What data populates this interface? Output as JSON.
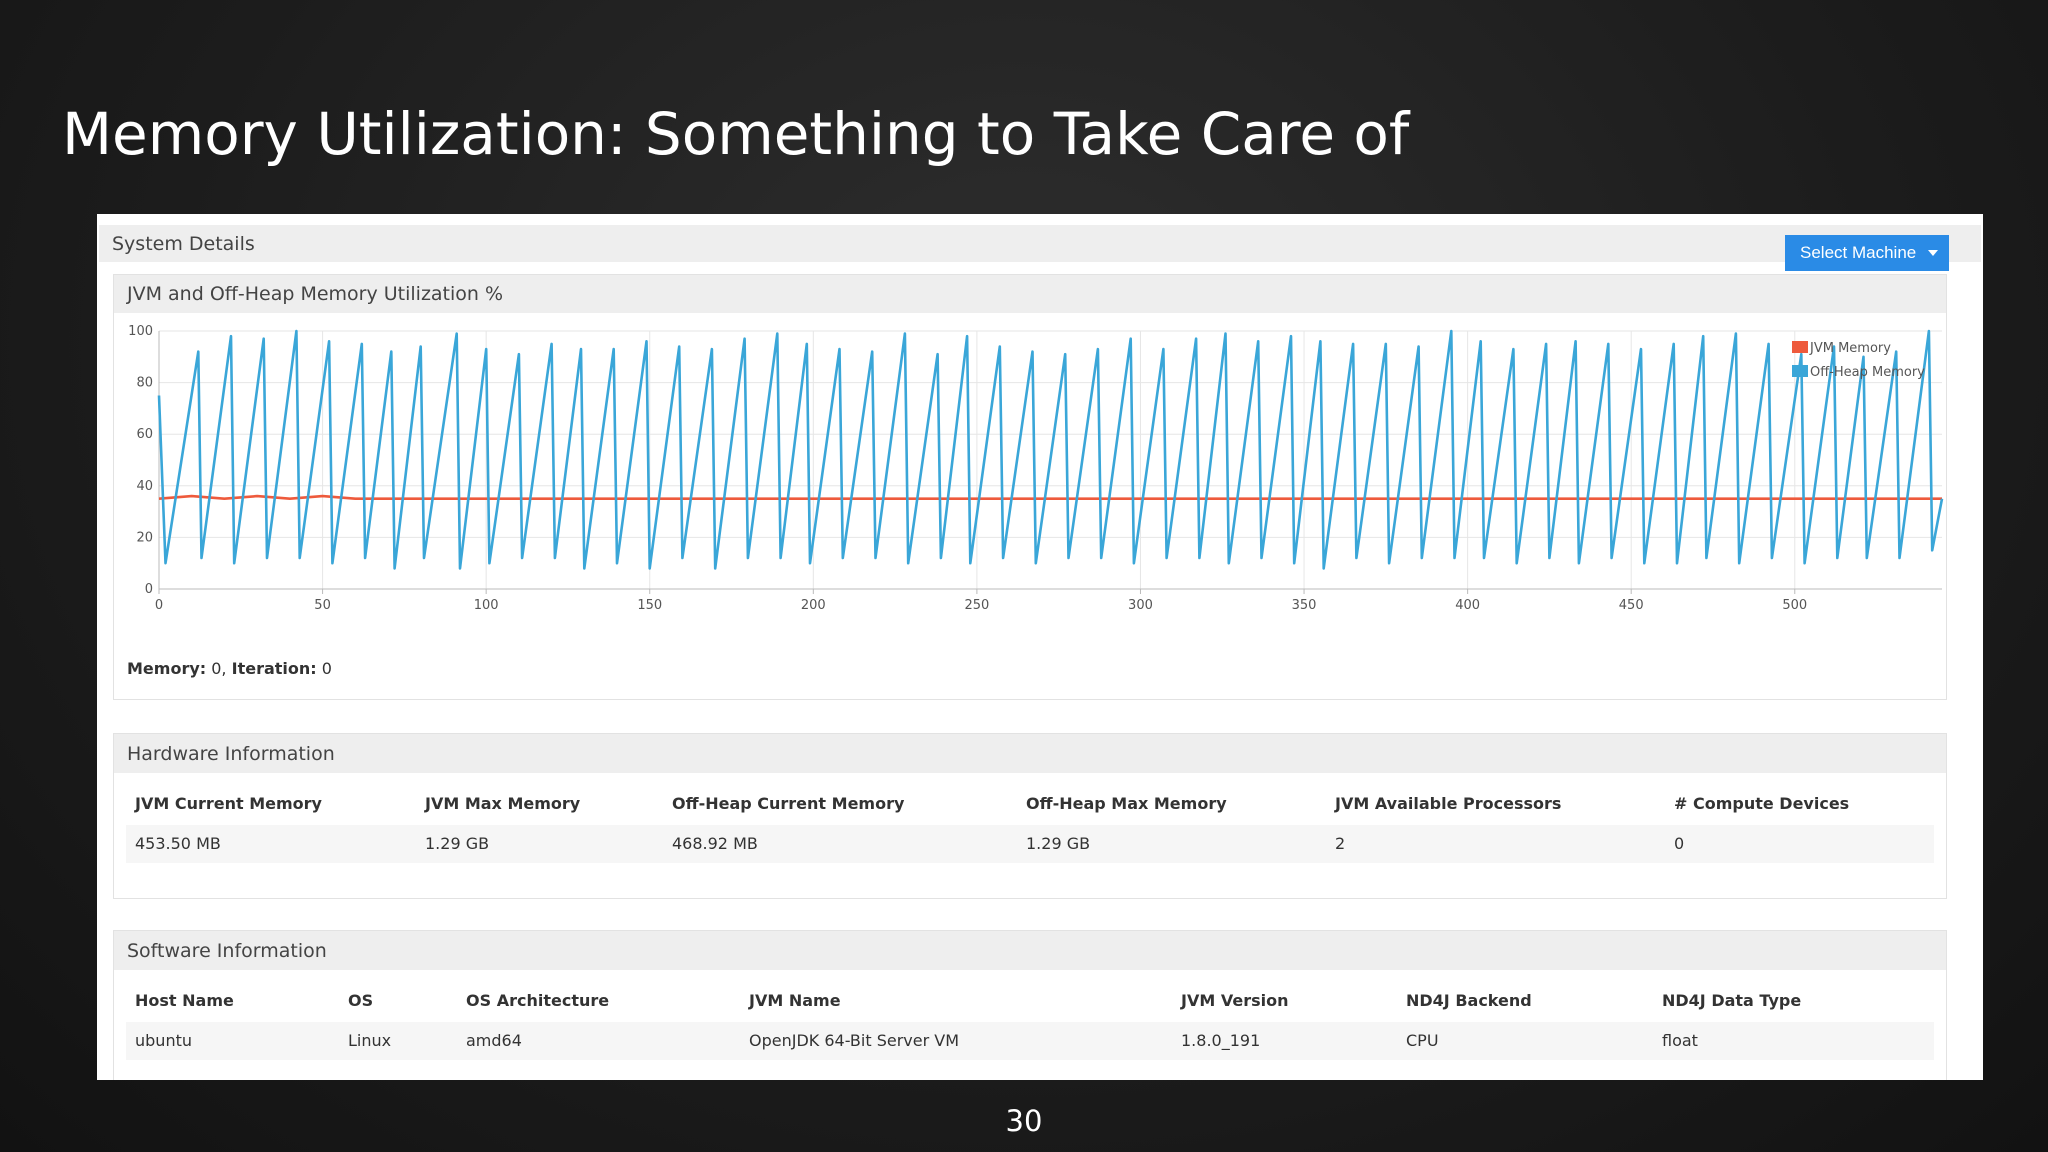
{
  "slide_title": "Memory Utilization: Something to Take Care of",
  "page_number": 30,
  "panel": {
    "heading": "System Details",
    "button": "Select Machine"
  },
  "chart_data": {
    "type": "line",
    "title": "JVM and Off-Heap Memory Utilization %",
    "series": [
      {
        "name": "JVM Memory",
        "color": "#ee5a3c",
        "x": [
          0,
          10,
          20,
          30,
          40,
          50,
          60,
          80,
          100,
          545
        ],
        "values": [
          35,
          36,
          35,
          36,
          35,
          36,
          35,
          35,
          35,
          35
        ]
      },
      {
        "name": "Off-Heap Memory",
        "color": "#3aa6d8",
        "x": [
          0,
          2,
          12,
          13,
          22,
          23,
          32,
          33,
          42,
          43,
          52,
          53,
          62,
          63,
          71,
          72,
          80,
          81,
          91,
          92,
          100,
          101,
          110,
          111,
          120,
          121,
          129,
          130,
          139,
          140,
          149,
          150,
          159,
          160,
          169,
          170,
          179,
          180,
          189,
          190,
          198,
          199,
          208,
          209,
          218,
          219,
          228,
          229,
          238,
          239,
          247,
          248,
          257,
          258,
          267,
          268,
          277,
          278,
          287,
          288,
          297,
          298,
          307,
          308,
          317,
          318,
          326,
          327,
          336,
          337,
          346,
          347,
          355,
          356,
          365,
          366,
          375,
          376,
          385,
          386,
          395,
          396,
          404,
          405,
          414,
          415,
          424,
          425,
          433,
          434,
          443,
          444,
          453,
          454,
          463,
          464,
          472,
          473,
          482,
          483,
          492,
          493,
          502,
          503,
          512,
          513,
          521,
          522,
          531,
          532,
          541,
          542,
          545
        ],
        "values": [
          75,
          10,
          92,
          12,
          98,
          10,
          97,
          12,
          100,
          12,
          96,
          10,
          95,
          12,
          92,
          8,
          94,
          12,
          99,
          8,
          93,
          10,
          91,
          12,
          95,
          12,
          93,
          8,
          93,
          10,
          96,
          8,
          94,
          12,
          93,
          8,
          97,
          12,
          99,
          12,
          95,
          10,
          93,
          12,
          92,
          12,
          99,
          10,
          91,
          12,
          98,
          10,
          94,
          12,
          92,
          10,
          91,
          12,
          93,
          12,
          97,
          10,
          93,
          12,
          97,
          12,
          99,
          10,
          96,
          12,
          98,
          10,
          96,
          8,
          95,
          12,
          95,
          10,
          94,
          12,
          100,
          12,
          96,
          12,
          93,
          10,
          95,
          12,
          96,
          10,
          95,
          12,
          93,
          10,
          95,
          10,
          98,
          12,
          99,
          10,
          95,
          12,
          91,
          10,
          94,
          12,
          90,
          12,
          92,
          12,
          100,
          15,
          35
        ]
      }
    ],
    "xlim": [
      0,
      545
    ],
    "xticks": [
      0,
      50,
      100,
      150,
      200,
      250,
      300,
      350,
      400,
      450,
      500
    ],
    "ylim": [
      0,
      100
    ],
    "yticks": [
      0,
      20,
      40,
      60,
      80,
      100
    ],
    "grid": true,
    "legend": "upper right"
  },
  "status": [
    "Memory:",
    "0,",
    "Iteration:",
    "0"
  ],
  "hardware": {
    "title": "Hardware Information",
    "headers": [
      "JVM Current Memory",
      "JVM Max Memory",
      "Off-Heap Current Memory",
      "Off-Heap Max Memory",
      "JVM Available Processors",
      "# Compute Devices"
    ],
    "rows": [
      [
        "453.50 MB",
        "1.29 GB",
        "468.92 MB",
        "1.29 GB",
        2,
        0
      ]
    ]
  },
  "software": {
    "title": "Software Information",
    "headers": [
      "Host Name",
      "OS",
      "OS Architecture",
      "JVM Name",
      "JVM Version",
      "ND4J Backend",
      "ND4J Data Type"
    ],
    "rows": [
      [
        "ubuntu",
        "Linux",
        "amd64",
        "OpenJDK 64-Bit Server VM",
        "1.8.0_191",
        "CPU",
        "float"
      ]
    ]
  }
}
